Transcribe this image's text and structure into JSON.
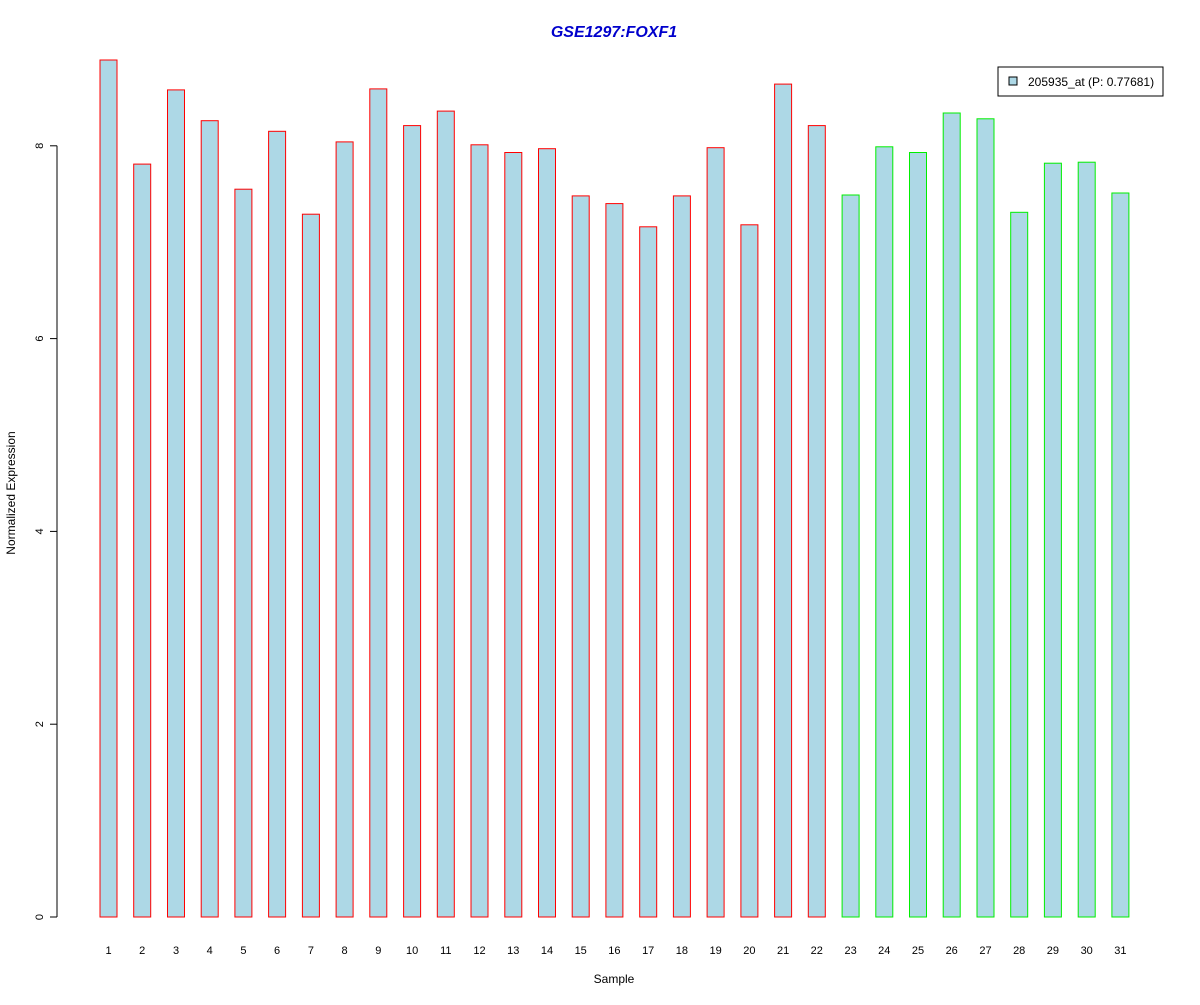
{
  "chart_data": {
    "type": "bar",
    "title": "GSE1297:FOXF1",
    "xlabel": "Sample",
    "ylabel": "Normalized Expression",
    "ylim": [
      0,
      8.9
    ],
    "yticks": [
      0,
      2,
      4,
      6,
      8
    ],
    "grid": false,
    "legend_position": "top-right",
    "categories": [
      "1",
      "2",
      "3",
      "4",
      "5",
      "6",
      "7",
      "8",
      "9",
      "10",
      "11",
      "12",
      "13",
      "14",
      "15",
      "16",
      "17",
      "18",
      "19",
      "20",
      "21",
      "22",
      "23",
      "24",
      "25",
      "26",
      "27",
      "28",
      "29",
      "30",
      "31"
    ],
    "series": [
      {
        "name": "205935_at (P: 0.77681)",
        "values": [
          8.89,
          7.81,
          8.58,
          8.26,
          7.55,
          8.15,
          7.29,
          8.04,
          8.59,
          8.21,
          8.36,
          8.01,
          7.93,
          7.97,
          7.48,
          7.4,
          7.16,
          7.48,
          7.98,
          7.18,
          8.64,
          8.21,
          7.49,
          7.99,
          7.93,
          8.34,
          8.28,
          7.31,
          7.82,
          7.83,
          7.51
        ]
      }
    ],
    "groups": [
      {
        "samples": [
          1,
          22
        ],
        "border_color": "#ff0000"
      },
      {
        "samples": [
          23,
          31
        ],
        "border_color": "#00ee00"
      }
    ],
    "colors": {
      "bar_fill": "#add8e6",
      "title": "#0000cc",
      "axis": "#000000"
    }
  }
}
